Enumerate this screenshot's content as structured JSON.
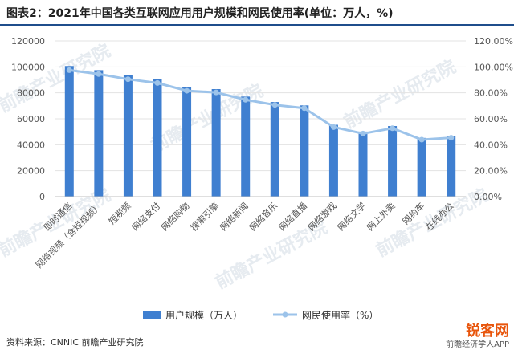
{
  "title": "图表2：2021年中国各类互联网应用用户规模和网民使用率(单位：万人，%)",
  "source": "资料来源：CNNIC 前瞻产业研究院",
  "watermark": "前瞻产业研究院",
  "badge": {
    "main": "锐客网",
    "sub": "前瞻经济学人APP"
  },
  "colors": {
    "bar": "#3f7fd0",
    "line": "#9cc3ea",
    "grid": "#e3e3e3",
    "text": "#555555",
    "title_rule": "#1f4e8c"
  },
  "chart_data": {
    "type": "bar",
    "categories": [
      "即时通信",
      "网络视频（含短视频）",
      "短视频",
      "网络支付",
      "网络购物",
      "搜索引擎",
      "网络新闻",
      "网络音乐",
      "网络直播",
      "网络游戏",
      "网络文学",
      "网上外卖",
      "网约车",
      "在线办公"
    ],
    "series": [
      {
        "name": "用户规模（万人）",
        "type": "bar",
        "axis": "left",
        "values": [
          100666,
          97471,
          93415,
          90363,
          84210,
          82884,
          77109,
          72946,
          70337,
          55354,
          50159,
          54416,
          45261,
          46884
        ]
      },
      {
        "name": "网民使用率（%）",
        "type": "line",
        "axis": "right",
        "values": [
          97.5,
          94.5,
          90.5,
          87.6,
          81.6,
          80.3,
          74.7,
          70.7,
          68.2,
          53.6,
          48.6,
          52.7,
          43.9,
          45.4
        ]
      }
    ],
    "ylim_left": [
      0,
      120000
    ],
    "yticks_left": [
      "0",
      "20000",
      "40000",
      "60000",
      "80000",
      "100000",
      "120000"
    ],
    "ylim_right": [
      0,
      120
    ],
    "yticks_right": [
      "0.00%",
      "20.00%",
      "40.00%",
      "60.00%",
      "80.00%",
      "100.00%",
      "120.00%"
    ],
    "grid": true,
    "legend_position": "bottom"
  }
}
